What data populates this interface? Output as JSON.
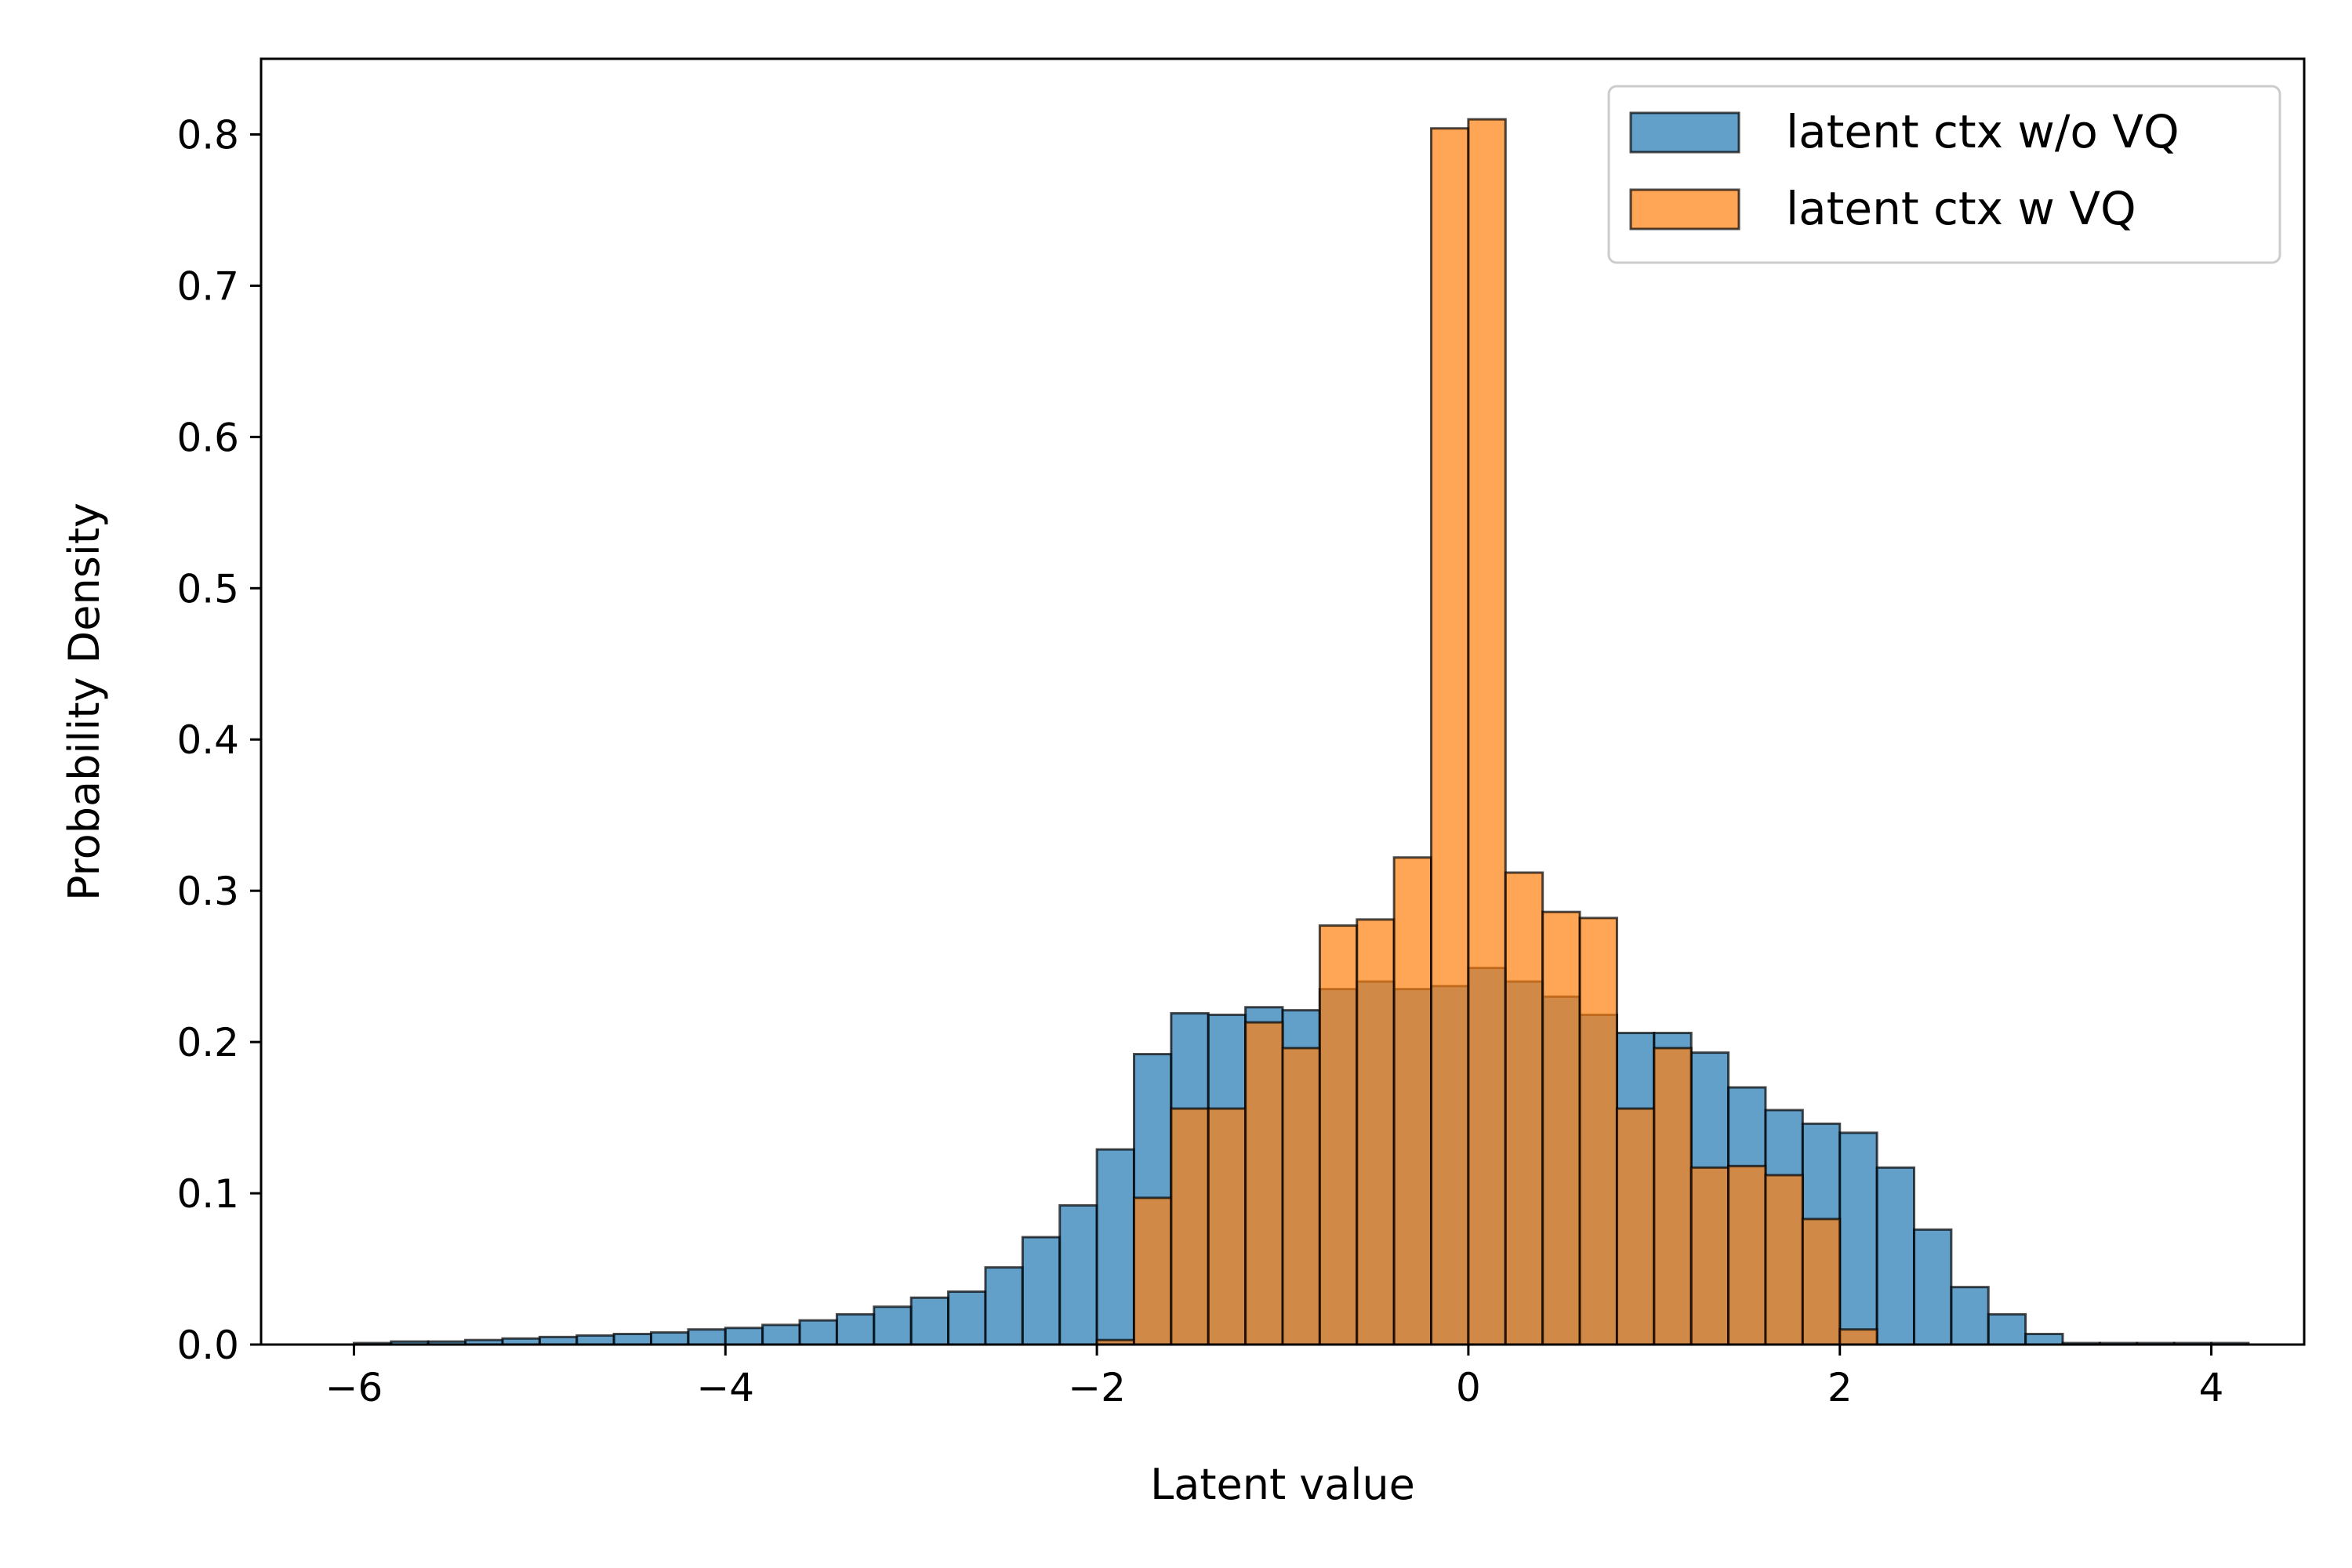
{
  "chart_data": {
    "type": "bar",
    "xlabel": "Latent value",
    "ylabel": "Probability Density",
    "xlim": [
      -6.5,
      4.5
    ],
    "ylim": [
      0,
      0.85
    ],
    "xticks": [
      -6,
      -4,
      -2,
      0,
      2,
      4
    ],
    "xtick_labels": [
      "−6",
      "−4",
      "−2",
      "0",
      "2",
      "4"
    ],
    "yticks": [
      0.0,
      0.1,
      0.2,
      0.3,
      0.4,
      0.5,
      0.6,
      0.7,
      0.8
    ],
    "ytick_labels": [
      "0.0",
      "0.1",
      "0.2",
      "0.3",
      "0.4",
      "0.5",
      "0.6",
      "0.7",
      "0.8"
    ],
    "grid": false,
    "legend_placement": "top-right",
    "bin_edges": [
      -6.0,
      -5.8,
      -5.6,
      -5.4,
      -5.2,
      -5.0,
      -4.8,
      -4.6,
      -4.4,
      -4.2,
      -4.0,
      -3.8,
      -3.6,
      -3.4,
      -3.2,
      -3.0,
      -2.8,
      -2.6,
      -2.4,
      -2.2,
      -2.0,
      -1.8,
      -1.6,
      -1.4,
      -1.2,
      -1.0,
      -0.8,
      -0.6,
      -0.4,
      -0.2,
      0.0,
      0.2,
      0.4,
      0.6,
      0.8,
      1.0,
      1.2,
      1.4,
      1.6,
      1.8,
      2.0,
      2.2,
      2.4,
      2.6,
      2.8,
      3.0,
      3.2,
      3.4,
      3.6,
      3.8,
      4.0,
      4.2
    ],
    "series": [
      {
        "name": "latent ctx w/o VQ",
        "color": "#1f77b4",
        "values": [
          0.001,
          0.002,
          0.002,
          0.003,
          0.004,
          0.005,
          0.006,
          0.007,
          0.008,
          0.01,
          0.011,
          0.013,
          0.016,
          0.02,
          0.025,
          0.031,
          0.035,
          0.051,
          0.071,
          0.092,
          0.129,
          0.192,
          0.219,
          0.218,
          0.223,
          0.221,
          0.235,
          0.24,
          0.235,
          0.237,
          0.249,
          0.24,
          0.23,
          0.218,
          0.206,
          0.206,
          0.193,
          0.17,
          0.155,
          0.146,
          0.14,
          0.117,
          0.076,
          0.038,
          0.02,
          0.007,
          0.001,
          0.001,
          0.001,
          0.001,
          0.001
        ]
      },
      {
        "name": "latent ctx w VQ",
        "color": "#ff7f0e",
        "values": [
          0,
          0,
          0,
          0,
          0,
          0,
          0,
          0,
          0,
          0,
          0,
          0,
          0,
          0,
          0,
          0,
          0,
          0,
          0,
          0,
          0.003,
          0.097,
          0.156,
          0.156,
          0.213,
          0.196,
          0.277,
          0.281,
          0.322,
          0.804,
          0.81,
          0.312,
          0.286,
          0.282,
          0.156,
          0.196,
          0.117,
          0.118,
          0.112,
          0.083,
          0.01,
          0,
          0,
          0,
          0,
          0,
          0,
          0,
          0,
          0,
          0
        ]
      }
    ]
  }
}
